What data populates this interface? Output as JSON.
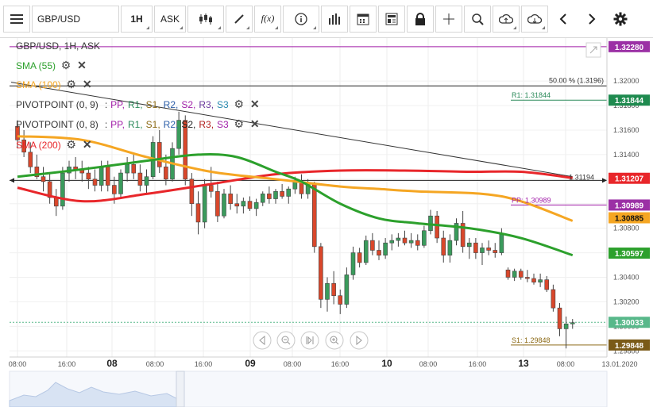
{
  "toolbar": {
    "menu_icon": "hamburger-icon",
    "symbol_value": "GBP/USD",
    "timeframe_label": "1H",
    "price_type_label": "ASK",
    "fx_label": "f(x)",
    "icons": [
      "candles-icon",
      "draw-line-icon",
      "function-icon",
      "info-icon",
      "volume-bars-icon",
      "calendar-icon",
      "news-icon",
      "lock-icon",
      "crosshair-icon",
      "zoom-icon",
      "upload-icon",
      "download-icon",
      "back-icon",
      "forward-icon",
      "settings-icon"
    ]
  },
  "chart_header": {
    "instrument_label": "GBP/USD, 1H, ASK"
  },
  "legend": {
    "sma55": {
      "label": "SMA (55)",
      "color": "#2ca02c"
    },
    "sma100": {
      "label": "SMA (100)",
      "color": "#f5a623"
    },
    "sma200": {
      "label": "SMA (200)",
      "color": "#e8262a"
    },
    "pivot1": {
      "label": "PIVOTPOINT (0, 9)",
      "sep": ":",
      "items": [
        "PP,",
        "R1,",
        "S1,",
        "R2,",
        "S2,",
        "R3,",
        "S3"
      ],
      "colors": [
        "#a11ea8",
        "#2b8a5a",
        "#8b6914",
        "#2b5ea8",
        "#a11ea8",
        "#6b3a9e",
        "#2a8ab0"
      ]
    },
    "pivot2": {
      "label": "PIVOTPOINT (0, 8)",
      "sep": ":",
      "items": [
        "PP,",
        "R1,",
        "S1,",
        "R2,",
        "S2,",
        "R3,",
        "S3"
      ],
      "colors": [
        "#a11ea8",
        "#2b8a5a",
        "#8b6914",
        "#2b5ea8",
        "#222222",
        "#b2201e",
        "#a11ea8"
      ]
    }
  },
  "chart_data": {
    "type": "candlestick",
    "instrument": "GBP/USD",
    "timeframe": "1H",
    "price_type": "ASK",
    "x_ticks": [
      "08:00",
      "16:00",
      "08",
      "08:00",
      "16:00",
      "09",
      "08:00",
      "16:00",
      "10",
      "08:00",
      "16:00",
      "13",
      "08:00",
      "13.01.2020"
    ],
    "x_tick_major": [
      false,
      false,
      true,
      false,
      false,
      true,
      false,
      false,
      true,
      false,
      false,
      true,
      false,
      false
    ],
    "y_ticks": [
      "1.32000",
      "1.31800",
      "1.31600",
      "1.31400",
      "1.31200",
      "1.31000",
      "1.30800",
      "1.30600",
      "1.30400",
      "1.30200",
      "1.30000",
      "1.29800"
    ],
    "y_tick_values": [
      1.32,
      1.318,
      1.316,
      1.314,
      1.312,
      1.31,
      1.308,
      1.306,
      1.304,
      1.302,
      1.3,
      1.298
    ],
    "ylim": [
      1.2975,
      1.3235
    ],
    "candles": [
      [
        1.3163,
        1.3168,
        1.3145,
        1.3152
      ],
      [
        1.3152,
        1.316,
        1.3138,
        1.3142
      ],
      [
        1.3142,
        1.315,
        1.3125,
        1.313
      ],
      [
        1.313,
        1.314,
        1.312,
        1.3122
      ],
      [
        1.3122,
        1.313,
        1.311,
        1.3118
      ],
      [
        1.3118,
        1.3125,
        1.31,
        1.3105
      ],
      [
        1.3105,
        1.3112,
        1.309,
        1.3098
      ],
      [
        1.3098,
        1.313,
        1.3095,
        1.3125
      ],
      [
        1.3125,
        1.3135,
        1.3118,
        1.313
      ],
      [
        1.313,
        1.3138,
        1.312,
        1.3128
      ],
      [
        1.3128,
        1.3135,
        1.3118,
        1.3125
      ],
      [
        1.3125,
        1.313,
        1.3112,
        1.312
      ],
      [
        1.312,
        1.3128,
        1.311,
        1.3115
      ],
      [
        1.3115,
        1.3135,
        1.311,
        1.313
      ],
      [
        1.313,
        1.3135,
        1.311,
        1.3115
      ],
      [
        1.3115,
        1.3122,
        1.31,
        1.3108
      ],
      [
        1.3108,
        1.3128,
        1.3105,
        1.3125
      ],
      [
        1.3125,
        1.3138,
        1.3118,
        1.3132
      ],
      [
        1.3132,
        1.314,
        1.312,
        1.3125
      ],
      [
        1.3125,
        1.3132,
        1.311,
        1.3115
      ],
      [
        1.3115,
        1.3128,
        1.3108,
        1.3122
      ],
      [
        1.3122,
        1.3155,
        1.312,
        1.315
      ],
      [
        1.315,
        1.316,
        1.3125,
        1.313
      ],
      [
        1.313,
        1.314,
        1.3115,
        1.312
      ],
      [
        1.312,
        1.315,
        1.3118,
        1.3145
      ],
      [
        1.3145,
        1.3175,
        1.314,
        1.3168
      ],
      [
        1.3168,
        1.3172,
        1.3115,
        1.312
      ],
      [
        1.312,
        1.3125,
        1.309,
        1.31
      ],
      [
        1.31,
        1.311,
        1.3075,
        1.3085
      ],
      [
        1.3085,
        1.312,
        1.308,
        1.3115
      ],
      [
        1.3115,
        1.313,
        1.3105,
        1.311
      ],
      [
        1.311,
        1.3118,
        1.3085,
        1.309
      ],
      [
        1.309,
        1.3112,
        1.3088,
        1.3108
      ],
      [
        1.3108,
        1.3115,
        1.3095,
        1.31
      ],
      [
        1.31,
        1.3108,
        1.3092,
        1.3098
      ],
      [
        1.3098,
        1.3105,
        1.3092,
        1.3102
      ],
      [
        1.3102,
        1.3106,
        1.3094,
        1.3096
      ],
      [
        1.3096,
        1.3104,
        1.309,
        1.3101
      ],
      [
        1.3101,
        1.311,
        1.3098,
        1.3108
      ],
      [
        1.3108,
        1.3114,
        1.31,
        1.3104
      ],
      [
        1.3104,
        1.3112,
        1.31,
        1.311
      ],
      [
        1.311,
        1.3116,
        1.3104,
        1.3106
      ],
      [
        1.3106,
        1.3114,
        1.31,
        1.3112
      ],
      [
        1.3112,
        1.3122,
        1.3108,
        1.3118
      ],
      [
        1.3118,
        1.3124,
        1.3104,
        1.3108
      ],
      [
        1.3108,
        1.312,
        1.3104,
        1.3116
      ],
      [
        1.3116,
        1.3118,
        1.306,
        1.3065
      ],
      [
        1.3065,
        1.3068,
        1.3015,
        1.3022
      ],
      [
        1.3022,
        1.304,
        1.3012,
        1.3035
      ],
      [
        1.3035,
        1.3045,
        1.3018,
        1.3025
      ],
      [
        1.3025,
        1.303,
        1.301,
        1.3018
      ],
      [
        1.3018,
        1.3048,
        1.3015,
        1.3042
      ],
      [
        1.3042,
        1.3065,
        1.3038,
        1.306
      ],
      [
        1.306,
        1.3064,
        1.3048,
        1.3052
      ],
      [
        1.3052,
        1.3074,
        1.305,
        1.307
      ],
      [
        1.307,
        1.3076,
        1.3058,
        1.3062
      ],
      [
        1.3062,
        1.307,
        1.3054,
        1.3058
      ],
      [
        1.3058,
        1.3072,
        1.3055,
        1.3068
      ],
      [
        1.3068,
        1.3075,
        1.3062,
        1.307
      ],
      [
        1.307,
        1.3076,
        1.3065,
        1.3072
      ],
      [
        1.3072,
        1.3078,
        1.3066,
        1.3068
      ],
      [
        1.3068,
        1.3076,
        1.3064,
        1.307
      ],
      [
        1.307,
        1.3075,
        1.3062,
        1.3066
      ],
      [
        1.3066,
        1.3082,
        1.3064,
        1.3078
      ],
      [
        1.3078,
        1.3095,
        1.3075,
        1.309
      ],
      [
        1.309,
        1.3094,
        1.3068,
        1.3072
      ],
      [
        1.3072,
        1.3078,
        1.3052,
        1.3058
      ],
      [
        1.3058,
        1.3075,
        1.3052,
        1.307
      ],
      [
        1.307,
        1.3088,
        1.3066,
        1.3084
      ],
      [
        1.3084,
        1.3094,
        1.306,
        1.3065
      ],
      [
        1.3065,
        1.3072,
        1.3055,
        1.3068
      ],
      [
        1.3068,
        1.3072,
        1.3055,
        1.306
      ],
      [
        1.306,
        1.3068,
        1.305,
        1.3064
      ],
      [
        1.3064,
        1.307,
        1.3058,
        1.3062
      ],
      [
        1.3062,
        1.3068,
        1.3056,
        1.306
      ],
      [
        1.306,
        1.308,
        1.3058,
        1.3076
      ],
      [
        1.3046,
        1.3048,
        1.3038,
        1.304
      ],
      [
        1.304,
        1.3047,
        1.3037,
        1.3045
      ],
      [
        1.3045,
        1.3047,
        1.3038,
        1.304
      ],
      [
        1.304,
        1.3046,
        1.3036,
        1.3039
      ],
      [
        1.3039,
        1.3043,
        1.3034,
        1.3036
      ],
      [
        1.3036,
        1.3043,
        1.3032,
        1.3038
      ],
      [
        1.3038,
        1.3041,
        1.3028,
        1.303
      ],
      [
        1.303,
        1.3034,
        1.3012,
        1.3015
      ],
      [
        1.3015,
        1.3019,
        1.2992,
        1.2998
      ],
      [
        1.2998,
        1.3008,
        1.2982,
        1.3002
      ],
      [
        1.3002,
        1.3006,
        1.2998,
        1.3003
      ]
    ],
    "sma55": [
      [
        0,
        1.3122
      ],
      [
        10,
        1.3128
      ],
      [
        20,
        1.3135
      ],
      [
        28,
        1.314
      ],
      [
        34,
        1.3138
      ],
      [
        40,
        1.3126
      ],
      [
        44,
        1.3118
      ],
      [
        50,
        1.31
      ],
      [
        56,
        1.3088
      ],
      [
        62,
        1.3084
      ],
      [
        70,
        1.308
      ],
      [
        78,
        1.3072
      ],
      [
        86,
        1.3058
      ]
    ],
    "sma100": [
      [
        0,
        1.3155
      ],
      [
        10,
        1.3152
      ],
      [
        20,
        1.3138
      ],
      [
        30,
        1.3126
      ],
      [
        40,
        1.312
      ],
      [
        50,
        1.3114
      ],
      [
        56,
        1.3112
      ],
      [
        62,
        1.311
      ],
      [
        72,
        1.3108
      ],
      [
        78,
        1.3102
      ],
      [
        86,
        1.3086
      ]
    ],
    "sma200": [
      [
        0,
        1.3113
      ],
      [
        10,
        1.3102
      ],
      [
        20,
        1.3108
      ],
      [
        30,
        1.3116
      ],
      [
        40,
        1.3124
      ],
      [
        50,
        1.3127
      ],
      [
        60,
        1.3127
      ],
      [
        70,
        1.3126
      ],
      [
        78,
        1.3126
      ],
      [
        86,
        1.3121
      ]
    ],
    "trendline": [
      [
        0,
        1.3199
      ],
      [
        86,
        1.3122
      ]
    ],
    "fib_line": {
      "value": 1.3196,
      "label": "50.00 % (1.3196)"
    },
    "cross_line": {
      "value": 1.3119,
      "label": "1.31194"
    },
    "pivot_lines": [
      {
        "name": "R1",
        "label": "R1: 1.31844",
        "value": 1.31844,
        "color": "#2b8a5a"
      },
      {
        "name": "PP",
        "label": "PP: 1.30989",
        "value": 1.30989,
        "color": "#a11ea8"
      },
      {
        "name": "S1",
        "label": "S1: 1.29848",
        "value": 1.29848,
        "color": "#8b6914"
      }
    ],
    "top_line": {
      "value": 1.3228,
      "color": "#a11ea8"
    },
    "current_price": 1.30033,
    "price_tags": [
      {
        "label": "1.32280",
        "value": 1.3228,
        "bg": "#9b30a5",
        "fg": "#ffffff"
      },
      {
        "label": "1.31844",
        "value": 1.31844,
        "bg": "#1e8a4f",
        "fg": "#ffffff"
      },
      {
        "label": "1.31207",
        "value": 1.31207,
        "bg": "#e8262a",
        "fg": "#ffffff"
      },
      {
        "label": "1.30989",
        "value": 1.30989,
        "bg": "#9b30a5",
        "fg": "#ffffff"
      },
      {
        "label": "1.30885",
        "value": 1.30885,
        "bg": "#f5a623",
        "fg": "#111111"
      },
      {
        "label": "1.30597",
        "value": 1.30597,
        "bg": "#2ca02c",
        "fg": "#ffffff"
      },
      {
        "label": "1.30033",
        "value": 1.30033,
        "bg": "#58b88a",
        "fg": "#ffffff"
      },
      {
        "label": "1.29848",
        "value": 1.29848,
        "bg": "#7a5a18",
        "fg": "#ffffff"
      }
    ],
    "up_color": "#3a9b5c",
    "down_color": "#d9472b"
  }
}
